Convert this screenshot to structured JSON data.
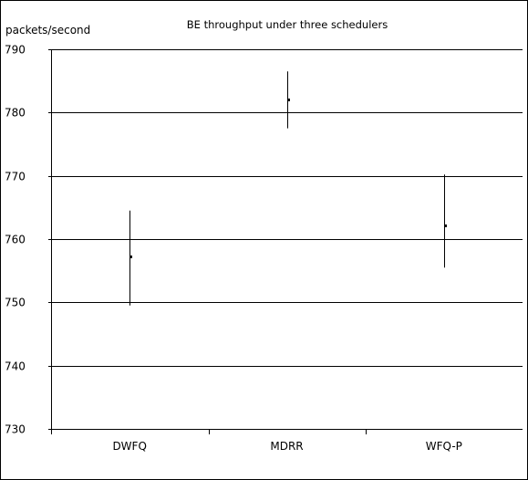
{
  "chart_data": {
    "type": "scatter",
    "title": "BE throughput under three schedulers",
    "ylabel": "packets/second",
    "xlabel": "",
    "categories": [
      "DWFQ",
      "MDRR",
      "WFQ-P"
    ],
    "ylim": [
      730,
      790
    ],
    "yticks": [
      730,
      740,
      750,
      760,
      770,
      780,
      790
    ],
    "grid": true,
    "legend": "none",
    "series": [
      {
        "values": [
          757.2,
          782.1,
          762.2
        ],
        "lower": [
          749.5,
          777.5,
          755.5
        ],
        "upper": [
          764.5,
          786.5,
          770.2
        ]
      }
    ]
  },
  "colors": {
    "axis": "#000000",
    "grid": "#000000",
    "marker": "#000000",
    "background": "#ffffff"
  }
}
